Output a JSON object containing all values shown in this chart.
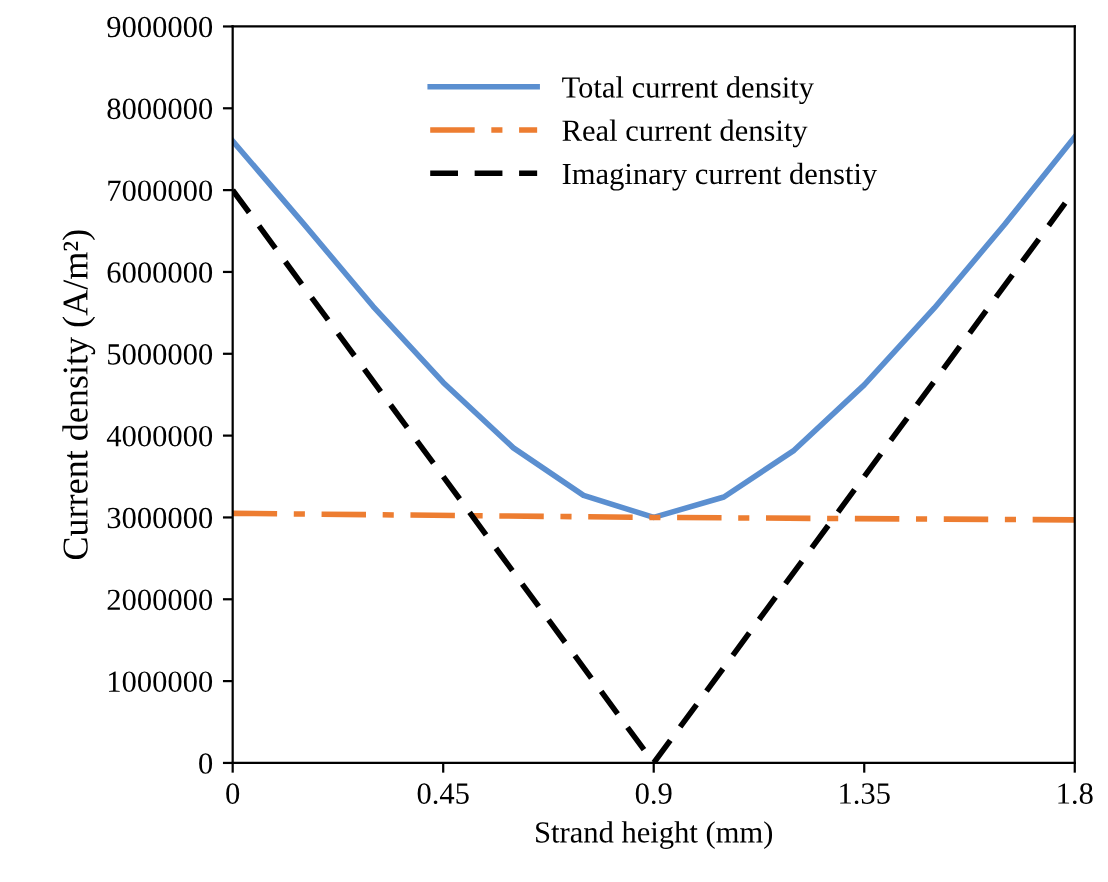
{
  "chart_data": {
    "type": "line",
    "xlabel": "Strand height (mm)",
    "ylabel": "Current density (A/m²)",
    "xlim": [
      0,
      1.8
    ],
    "xticks": [
      0,
      0.45,
      0.9,
      1.35,
      1.8
    ],
    "ylim": [
      0,
      9000000
    ],
    "yticks": [
      0,
      1000000,
      2000000,
      3000000,
      4000000,
      5000000,
      6000000,
      7000000,
      8000000,
      9000000
    ],
    "grid": false,
    "legend": "top",
    "marker": "none",
    "series": [
      {
        "name": "Total current density",
        "color": "#5b8fd0",
        "line_style": "solid",
        "x": [
          0,
          0.15,
          0.3,
          0.45,
          0.6,
          0.75,
          0.9,
          1.05,
          1.2,
          1.35,
          1.5,
          1.65,
          1.8
        ],
        "values": [
          7600000,
          6600000,
          5580000,
          4650000,
          3850000,
          3270000,
          3000000,
          3250000,
          3820000,
          4620000,
          5560000,
          6580000,
          7650000
        ]
      },
      {
        "name": "Real current density",
        "color": "#ed7d31",
        "line_style": "dashdot",
        "x": [
          0,
          0.9,
          1.8
        ],
        "values": [
          3050000,
          3000000,
          2970000
        ]
      },
      {
        "name": "Imaginary current denstiy",
        "color": "#000000",
        "line_style": "dashed",
        "x": [
          0,
          0.9,
          1.8
        ],
        "values": [
          7000000,
          0,
          7000000
        ]
      }
    ]
  }
}
